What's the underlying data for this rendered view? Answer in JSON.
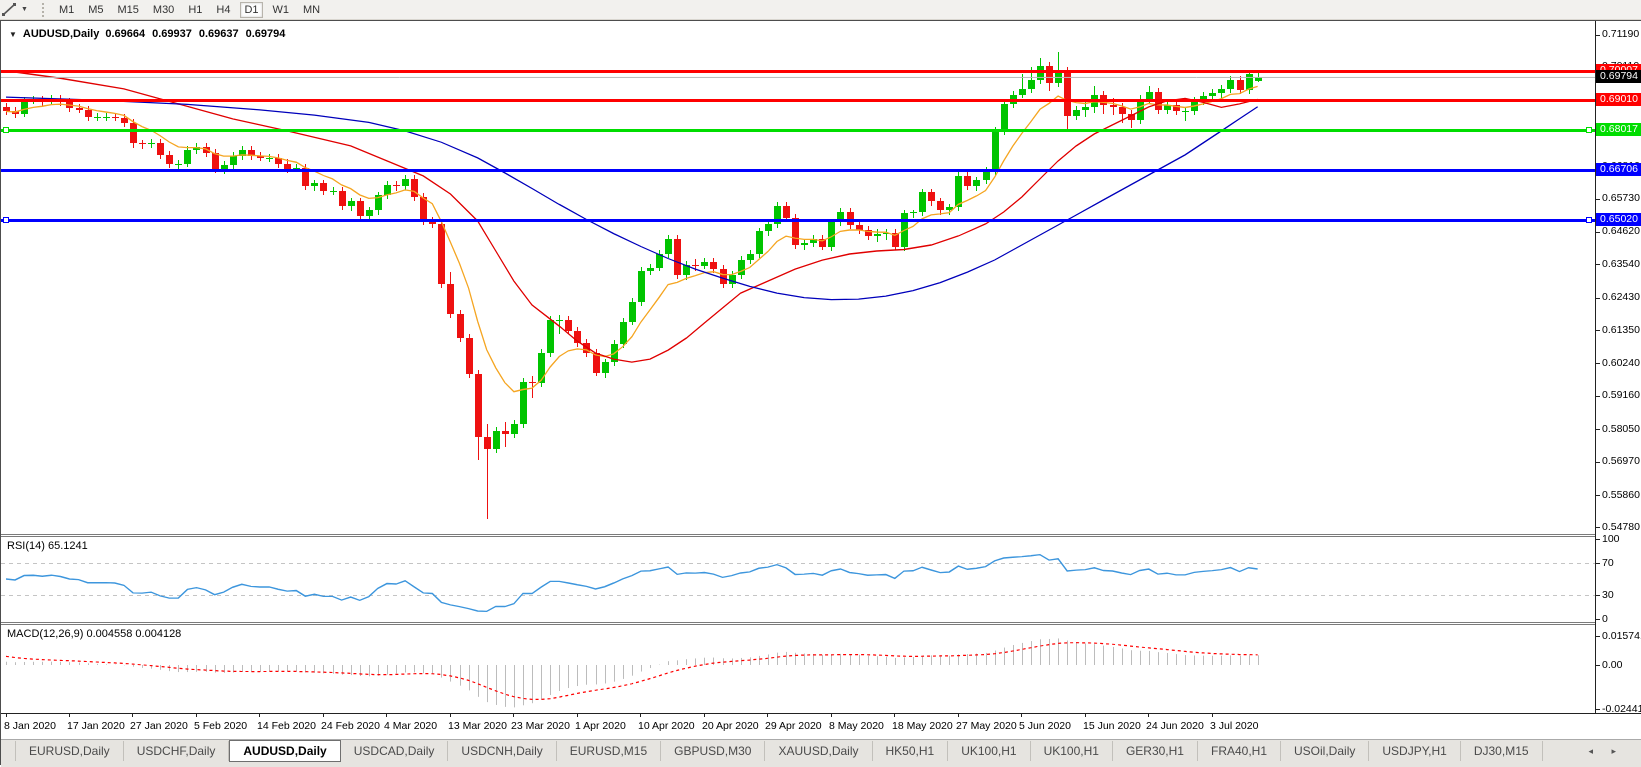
{
  "toolbar": {
    "timeframes": [
      "M1",
      "M5",
      "M15",
      "M30",
      "H1",
      "H4",
      "D1",
      "W1",
      "MN"
    ],
    "active_timeframe": "D1"
  },
  "chart": {
    "symbol_label": "AUDUSD,Daily",
    "ohlc": {
      "open": "0.69664",
      "high": "0.69937",
      "low": "0.69637",
      "close": "0.69794"
    }
  },
  "chart_data": {
    "type": "candlestick",
    "symbol": "AUDUSD",
    "timeframe": "Daily",
    "bull_color": "#00c400",
    "bear_color": "#ee1111",
    "price_axis_ticks": [
      "0.71190",
      "0.70110",
      "0.69000",
      "0.67920",
      "0.66810",
      "0.65730",
      "0.64620",
      "0.63540",
      "0.62430",
      "0.61350",
      "0.60240",
      "0.59160",
      "0.58050",
      "0.56970",
      "0.55860",
      "0.54780"
    ],
    "current_price": {
      "label": "0.69794",
      "value": 0.69794,
      "line_color": "#b9b9b9",
      "label_bg": "#000000"
    },
    "horizontal_lines": [
      {
        "label": "0.70007",
        "price": 0.70007,
        "color": "#ff0000",
        "width": 3,
        "handles": false
      },
      {
        "label": "0.69010",
        "price": 0.6901,
        "color": "#ff0000",
        "width": 3,
        "handles": false
      },
      {
        "label": "0.68017",
        "price": 0.68017,
        "color": "#00dd00",
        "width": 3,
        "handles": true
      },
      {
        "label": "0.66706",
        "price": 0.66706,
        "color": "#0000ff",
        "width": 3,
        "handles": false
      },
      {
        "label": "0.65020",
        "price": 0.6502,
        "color": "#0000ff",
        "width": 3,
        "handles": true
      }
    ],
    "date_labels": [
      "8 Jan 2020",
      "17 Jan 2020",
      "27 Jan 2020",
      "5 Feb 2020",
      "14 Feb 2020",
      "24 Feb 2020",
      "4 Mar 2020",
      "13 Mar 2020",
      "23 Mar 2020",
      "1 Apr 2020",
      "10 Apr 2020",
      "20 Apr 2020",
      "29 Apr 2020",
      "8 May 2020",
      "18 May 2020",
      "27 May 2020",
      "5 Jun 2020",
      "15 Jun 2020",
      "24 Jun 2020",
      "3 Jul 2020"
    ],
    "date_label_step": 7,
    "candles": [
      [
        0.688,
        0.6893,
        0.6852,
        0.6865
      ],
      [
        0.6865,
        0.6878,
        0.6842,
        0.6855
      ],
      [
        0.6855,
        0.6913,
        0.6845,
        0.69
      ],
      [
        0.69,
        0.6916,
        0.689,
        0.6903
      ],
      [
        0.6903,
        0.6916,
        0.6882,
        0.6895
      ],
      [
        0.6895,
        0.6918,
        0.6885,
        0.6905
      ],
      [
        0.6905,
        0.6918,
        0.6882,
        0.6895
      ],
      [
        0.6895,
        0.6908,
        0.6862,
        0.6875
      ],
      [
        0.6875,
        0.6888,
        0.6857,
        0.687
      ],
      [
        0.687,
        0.6883,
        0.6832,
        0.6845
      ],
      [
        0.6845,
        0.6858,
        0.6832,
        0.6845
      ],
      [
        0.6845,
        0.686,
        0.6833,
        0.6846
      ],
      [
        0.6846,
        0.6858,
        0.683,
        0.6843
      ],
      [
        0.6843,
        0.6856,
        0.6814,
        0.6827
      ],
      [
        0.6827,
        0.684,
        0.6745,
        0.6758
      ],
      [
        0.6758,
        0.6771,
        0.6742,
        0.6755
      ],
      [
        0.6755,
        0.6773,
        0.6742,
        0.676
      ],
      [
        0.676,
        0.6773,
        0.6707,
        0.672
      ],
      [
        0.672,
        0.6733,
        0.6677,
        0.669
      ],
      [
        0.669,
        0.6703,
        0.6673,
        0.669
      ],
      [
        0.669,
        0.6748,
        0.6677,
        0.6735
      ],
      [
        0.6735,
        0.6758,
        0.6722,
        0.6745
      ],
      [
        0.6745,
        0.6758,
        0.6712,
        0.6725
      ],
      [
        0.6725,
        0.6738,
        0.6657,
        0.667
      ],
      [
        0.667,
        0.6698,
        0.6655,
        0.6685
      ],
      [
        0.6685,
        0.6728,
        0.6672,
        0.6715
      ],
      [
        0.6715,
        0.6748,
        0.6702,
        0.6735
      ],
      [
        0.6735,
        0.6748,
        0.6702,
        0.6715
      ],
      [
        0.6715,
        0.6728,
        0.6697,
        0.671
      ],
      [
        0.671,
        0.6723,
        0.6695,
        0.671
      ],
      [
        0.671,
        0.6723,
        0.6677,
        0.669
      ],
      [
        0.669,
        0.6705,
        0.6658,
        0.6672
      ],
      [
        0.6672,
        0.6688,
        0.666,
        0.6675
      ],
      [
        0.6675,
        0.6688,
        0.6602,
        0.6615
      ],
      [
        0.6615,
        0.6638,
        0.6602,
        0.6625
      ],
      [
        0.6625,
        0.6638,
        0.6587,
        0.66
      ],
      [
        0.66,
        0.6613,
        0.6585,
        0.66
      ],
      [
        0.66,
        0.6613,
        0.6537,
        0.655
      ],
      [
        0.655,
        0.6578,
        0.6535,
        0.6565
      ],
      [
        0.6565,
        0.6578,
        0.6502,
        0.6515
      ],
      [
        0.6515,
        0.6548,
        0.65,
        0.6535
      ],
      [
        0.6535,
        0.6598,
        0.6522,
        0.6585
      ],
      [
        0.6585,
        0.6633,
        0.6572,
        0.662
      ],
      [
        0.662,
        0.6633,
        0.66,
        0.6615
      ],
      [
        0.6615,
        0.6653,
        0.6602,
        0.664
      ],
      [
        0.664,
        0.6653,
        0.6567,
        0.658
      ],
      [
        0.658,
        0.6593,
        0.6487,
        0.65
      ],
      [
        0.65,
        0.6513,
        0.6475,
        0.649
      ],
      [
        0.649,
        0.6503,
        0.6277,
        0.629
      ],
      [
        0.629,
        0.633,
        0.6177,
        0.619
      ],
      [
        0.619,
        0.6203,
        0.6095,
        0.611
      ],
      [
        0.611,
        0.6123,
        0.5977,
        0.599
      ],
      [
        0.599,
        0.6003,
        0.5702,
        0.578
      ],
      [
        0.578,
        0.5825,
        0.551,
        0.574
      ],
      [
        0.574,
        0.5813,
        0.5725,
        0.58
      ],
      [
        0.58,
        0.583,
        0.5748,
        0.579
      ],
      [
        0.579,
        0.5838,
        0.5778,
        0.5825
      ],
      [
        0.5825,
        0.5978,
        0.5812,
        0.5965
      ],
      [
        0.5965,
        0.5985,
        0.5912,
        0.596
      ],
      [
        0.596,
        0.6073,
        0.5947,
        0.606
      ],
      [
        0.606,
        0.6183,
        0.6047,
        0.617
      ],
      [
        0.617,
        0.6188,
        0.6125,
        0.617
      ],
      [
        0.617,
        0.6183,
        0.6122,
        0.6135
      ],
      [
        0.6135,
        0.6148,
        0.6082,
        0.6095
      ],
      [
        0.6095,
        0.6108,
        0.6047,
        0.606
      ],
      [
        0.606,
        0.6073,
        0.5982,
        0.5995
      ],
      [
        0.5995,
        0.604,
        0.5978,
        0.603
      ],
      [
        0.603,
        0.6103,
        0.6018,
        0.609
      ],
      [
        0.609,
        0.6178,
        0.6077,
        0.6165
      ],
      [
        0.6165,
        0.6243,
        0.6152,
        0.623
      ],
      [
        0.623,
        0.6348,
        0.6217,
        0.6335
      ],
      [
        0.6335,
        0.6358,
        0.632,
        0.6345
      ],
      [
        0.6345,
        0.6403,
        0.6332,
        0.639
      ],
      [
        0.639,
        0.6453,
        0.6377,
        0.644
      ],
      [
        0.644,
        0.6453,
        0.6307,
        0.632
      ],
      [
        0.632,
        0.6368,
        0.6305,
        0.6355
      ],
      [
        0.6355,
        0.6372,
        0.6332,
        0.635
      ],
      [
        0.635,
        0.6378,
        0.634,
        0.6365
      ],
      [
        0.6365,
        0.6378,
        0.6327,
        0.634
      ],
      [
        0.634,
        0.6353,
        0.6277,
        0.629
      ],
      [
        0.629,
        0.6333,
        0.6275,
        0.632
      ],
      [
        0.632,
        0.6383,
        0.6307,
        0.637
      ],
      [
        0.637,
        0.6403,
        0.6357,
        0.639
      ],
      [
        0.639,
        0.6478,
        0.6377,
        0.6465
      ],
      [
        0.6465,
        0.6503,
        0.645,
        0.649
      ],
      [
        0.649,
        0.6563,
        0.6477,
        0.655
      ],
      [
        0.655,
        0.6563,
        0.6497,
        0.651
      ],
      [
        0.651,
        0.6523,
        0.6407,
        0.642
      ],
      [
        0.642,
        0.6438,
        0.6405,
        0.6425
      ],
      [
        0.6425,
        0.6453,
        0.6412,
        0.644
      ],
      [
        0.644,
        0.6453,
        0.6402,
        0.6415
      ],
      [
        0.6415,
        0.6508,
        0.64,
        0.6495
      ],
      [
        0.6495,
        0.6543,
        0.6482,
        0.653
      ],
      [
        0.653,
        0.6543,
        0.6472,
        0.6485
      ],
      [
        0.6485,
        0.6498,
        0.6457,
        0.647
      ],
      [
        0.647,
        0.6483,
        0.6437,
        0.645
      ],
      [
        0.645,
        0.6472,
        0.643,
        0.6455
      ],
      [
        0.6455,
        0.6473,
        0.6437,
        0.646
      ],
      [
        0.646,
        0.6473,
        0.6402,
        0.6415
      ],
      [
        0.6415,
        0.6538,
        0.64,
        0.6525
      ],
      [
        0.6525,
        0.6538,
        0.651,
        0.653
      ],
      [
        0.653,
        0.6608,
        0.6517,
        0.6595
      ],
      [
        0.6595,
        0.6608,
        0.6552,
        0.6565
      ],
      [
        0.6565,
        0.6578,
        0.6522,
        0.6535
      ],
      [
        0.6535,
        0.6558,
        0.652,
        0.6545
      ],
      [
        0.6545,
        0.6663,
        0.6532,
        0.665
      ],
      [
        0.665,
        0.6663,
        0.6602,
        0.6615
      ],
      [
        0.6615,
        0.6648,
        0.66,
        0.6635
      ],
      [
        0.6635,
        0.6678,
        0.6622,
        0.6665
      ],
      [
        0.6665,
        0.6813,
        0.6652,
        0.68
      ],
      [
        0.68,
        0.6903,
        0.6787,
        0.689
      ],
      [
        0.689,
        0.6933,
        0.6875,
        0.692
      ],
      [
        0.692,
        0.6988,
        0.6907,
        0.694
      ],
      [
        0.694,
        0.7013,
        0.6927,
        0.697
      ],
      [
        0.697,
        0.7043,
        0.6955,
        0.7015
      ],
      [
        0.7015,
        0.7028,
        0.6932,
        0.696
      ],
      [
        0.696,
        0.7064,
        0.6947,
        0.7
      ],
      [
        0.7,
        0.7013,
        0.68,
        0.685
      ],
      [
        0.685,
        0.6883,
        0.6835,
        0.687
      ],
      [
        0.687,
        0.69,
        0.6848,
        0.688
      ],
      [
        0.688,
        0.6948,
        0.6857,
        0.692
      ],
      [
        0.692,
        0.6933,
        0.6857,
        0.6885
      ],
      [
        0.6885,
        0.6908,
        0.6852,
        0.688
      ],
      [
        0.688,
        0.6893,
        0.6827,
        0.6855
      ],
      [
        0.6855,
        0.6868,
        0.6807,
        0.6835
      ],
      [
        0.6835,
        0.6918,
        0.6822,
        0.6905
      ],
      [
        0.6905,
        0.6948,
        0.689,
        0.693
      ],
      [
        0.693,
        0.6943,
        0.6857,
        0.687
      ],
      [
        0.687,
        0.6898,
        0.6855,
        0.6885
      ],
      [
        0.6885,
        0.6898,
        0.6852,
        0.6865
      ],
      [
        0.6865,
        0.6878,
        0.6832,
        0.6865
      ],
      [
        0.6865,
        0.6913,
        0.6852,
        0.69
      ],
      [
        0.69,
        0.6928,
        0.6885,
        0.6915
      ],
      [
        0.6915,
        0.6938,
        0.6902,
        0.6925
      ],
      [
        0.6925,
        0.6953,
        0.691,
        0.694
      ],
      [
        0.694,
        0.6983,
        0.6927,
        0.697
      ],
      [
        0.697,
        0.6983,
        0.6922,
        0.6935
      ],
      [
        0.6935,
        0.7003,
        0.6922,
        0.699
      ],
      [
        0.6966,
        0.69937,
        0.69637,
        0.69794
      ]
    ],
    "ma_lines": [
      {
        "name": "fast",
        "color": "#f5a623",
        "type": "ema",
        "period": 8
      },
      {
        "name": "medium",
        "color": "#e00000",
        "type": "points",
        "points": [
          [
            0,
            0.7
          ],
          [
            6,
            0.6975
          ],
          [
            13,
            0.694
          ],
          [
            19,
            0.689
          ],
          [
            25,
            0.684
          ],
          [
            31,
            0.68
          ],
          [
            38,
            0.675
          ],
          [
            42,
            0.67
          ],
          [
            46,
            0.665
          ],
          [
            49,
            0.659
          ],
          [
            52,
            0.65
          ],
          [
            54,
            0.64
          ],
          [
            56,
            0.63
          ],
          [
            58,
            0.622
          ],
          [
            61,
            0.615
          ],
          [
            63,
            0.61
          ],
          [
            65,
            0.606
          ],
          [
            67,
            0.604
          ],
          [
            69,
            0.603
          ],
          [
            71,
            0.604
          ],
          [
            73,
            0.607
          ],
          [
            75,
            0.611
          ],
          [
            77,
            0.616
          ],
          [
            79,
            0.621
          ],
          [
            81,
            0.626
          ],
          [
            84,
            0.63
          ],
          [
            87,
            0.634
          ],
          [
            90,
            0.637
          ],
          [
            93,
            0.639
          ],
          [
            96,
            0.64
          ],
          [
            99,
            0.6405
          ],
          [
            102,
            0.642
          ],
          [
            105,
            0.645
          ],
          [
            108,
            0.649
          ],
          [
            110,
            0.653
          ],
          [
            112,
            0.658
          ],
          [
            114,
            0.664
          ],
          [
            116,
            0.67
          ],
          [
            118,
            0.675
          ],
          [
            120,
            0.679
          ],
          [
            122,
            0.682
          ],
          [
            124,
            0.685
          ],
          [
            126,
            0.688
          ],
          [
            128,
            0.69
          ],
          [
            130,
            0.6908
          ],
          [
            132,
            0.6895
          ],
          [
            134,
            0.6878
          ],
          [
            136,
            0.689
          ],
          [
            138,
            0.6905
          ]
        ]
      },
      {
        "name": "slow",
        "color": "#0000bb",
        "type": "points",
        "points": [
          [
            0,
            0.6912
          ],
          [
            10,
            0.6902
          ],
          [
            20,
            0.6888
          ],
          [
            28,
            0.687
          ],
          [
            34,
            0.6852
          ],
          [
            40,
            0.6828
          ],
          [
            44,
            0.68
          ],
          [
            48,
            0.6762
          ],
          [
            52,
            0.671
          ],
          [
            55,
            0.666
          ],
          [
            58,
            0.6608
          ],
          [
            61,
            0.6555
          ],
          [
            64,
            0.6505
          ],
          [
            67,
            0.6458
          ],
          [
            70,
            0.6415
          ],
          [
            73,
            0.6375
          ],
          [
            76,
            0.634
          ],
          [
            79,
            0.631
          ],
          [
            82,
            0.6282
          ],
          [
            85,
            0.626
          ],
          [
            88,
            0.6245
          ],
          [
            91,
            0.6238
          ],
          [
            94,
            0.624
          ],
          [
            97,
            0.625
          ],
          [
            100,
            0.6268
          ],
          [
            103,
            0.6295
          ],
          [
            106,
            0.633
          ],
          [
            109,
            0.637
          ],
          [
            112,
            0.642
          ],
          [
            115,
            0.647
          ],
          [
            118,
            0.652
          ],
          [
            121,
            0.657
          ],
          [
            124,
            0.662
          ],
          [
            127,
            0.667
          ],
          [
            130,
            0.672
          ],
          [
            132,
            0.676
          ],
          [
            134,
            0.68
          ],
          [
            136,
            0.684
          ],
          [
            138,
            0.688
          ]
        ]
      }
    ],
    "rsi": {
      "label": "RSI(14)",
      "value": "65.1241",
      "period": 14,
      "axis_ticks": [
        "100",
        "70",
        "30",
        "0"
      ],
      "dash_levels": [
        70,
        30
      ],
      "line_color": "#3d96dd",
      "dash_color": "#c4c4c4"
    },
    "macd": {
      "label": "MACD(12,26,9)",
      "values": "0.004558 0.004128",
      "axis_ticks": [
        "0.015741",
        "0.00",
        "-0.024412"
      ],
      "hist_color": "#bcbcbc",
      "signal_color": "#ff0000"
    }
  },
  "tabs": {
    "items": [
      "EURUSD,Daily",
      "USDCHF,Daily",
      "AUDUSD,Daily",
      "USDCAD,Daily",
      "USDCNH,Daily",
      "EURUSD,M15",
      "GBPUSD,M30",
      "XAUUSD,Daily",
      "HK50,H1",
      "UK100,H1",
      "UK100,H1",
      "GER30,H1",
      "FRA40,H1",
      "USOil,Daily",
      "USDJPY,H1",
      "DJ30,M15"
    ],
    "active_index": 2,
    "arrows": "◂ ▸"
  }
}
